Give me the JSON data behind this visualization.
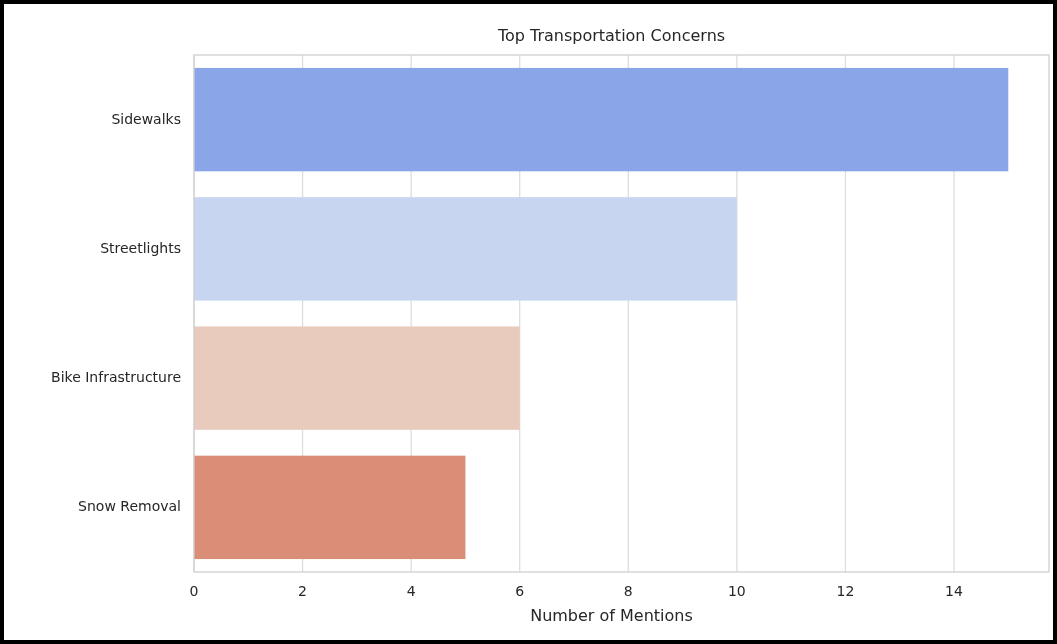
{
  "chart_data": {
    "type": "bar",
    "orientation": "horizontal",
    "title": "Top Transportation Concerns",
    "xlabel": "Number of Mentions",
    "categories": [
      "Sidewalks",
      "Streetlights",
      "Bike Infrastructure",
      "Snow Removal"
    ],
    "values": [
      15,
      10,
      6,
      5
    ],
    "colors": [
      "#8aa6e8",
      "#c8d5f0",
      "#e8cbbd",
      "#db8e77"
    ],
    "xlim": [
      0,
      15.75
    ],
    "xticks": [
      0,
      2,
      4,
      6,
      8,
      10,
      12,
      14
    ],
    "grid": "x"
  }
}
